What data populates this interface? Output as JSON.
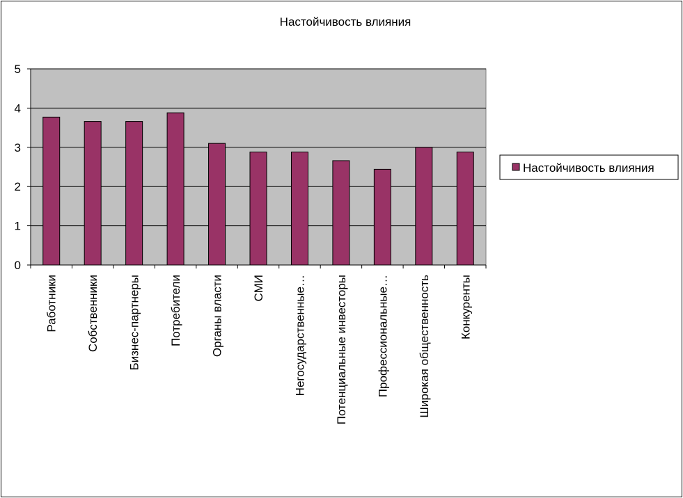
{
  "chart_data": {
    "type": "bar",
    "title": "Настойчивость влияния",
    "categories": [
      "Работники",
      "Собственники",
      "Бизнес-партнеры",
      "Потребители",
      "Органы власти",
      "СМИ",
      "Негосударственные…",
      "Потенциальные инвесторы",
      "Профессиональные…",
      "Широкая общественность",
      "Конкуренты"
    ],
    "series": [
      {
        "name": "Настойчивость влияния",
        "values": [
          3.77,
          3.66,
          3.66,
          3.88,
          3.1,
          2.88,
          2.88,
          2.66,
          2.44,
          3.0,
          2.88
        ],
        "color": "#993366"
      }
    ],
    "y_ticks": [
      "0",
      "1",
      "2",
      "3",
      "4",
      "5"
    ],
    "ylim": [
      0,
      5
    ],
    "grid": true,
    "plot_background": "#c0c0c0",
    "legend_position": "right"
  }
}
